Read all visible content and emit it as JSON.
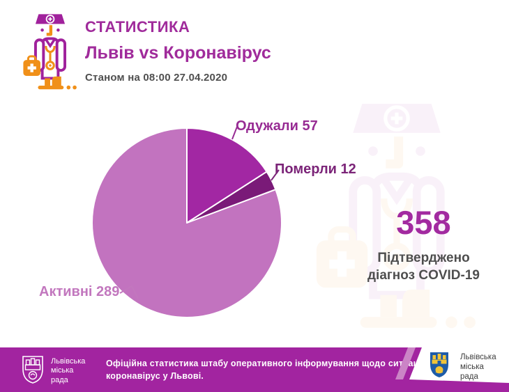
{
  "header": {
    "title": "СТАТИСТИКА",
    "subtitle": "Львів vs Коронавірус",
    "timestamp": "Станом на 08:00 27.04.2020"
  },
  "chart_data": {
    "type": "pie",
    "title": "Львів vs Коронавірус",
    "as_of": "Станом на 08:00 27.04.2020",
    "total": 358,
    "start_angle_deg": 0,
    "direction": "clockwise",
    "slices": [
      {
        "label": "Одужали",
        "value": 57,
        "color": "#A227A3",
        "label_color": "#972B93"
      },
      {
        "label": "Померли",
        "value": 12,
        "color": "#7A1A78",
        "label_color": "#7B2478"
      },
      {
        "label": "Активні",
        "value": 289,
        "color": "#C273BF",
        "label_color": "#C277BE"
      }
    ]
  },
  "summary": {
    "value": "358",
    "caption_line1": "Підтверджено",
    "caption_line2": "діагноз COVID-19"
  },
  "footer": {
    "text_line1": "Офіційна статистика штабу оперативного інформування щодо ситуації із захворюван",
    "text_line2": "коронавірус у Львові.",
    "left_logo": {
      "line1": "Львівська",
      "line2": "міська",
      "line3": "рада"
    },
    "right_logo": {
      "line1": "Львівська",
      "line2": "міська",
      "line3": "рада"
    }
  },
  "colors": {
    "accent_magenta": "#A02B9B",
    "footer_bg": "#A224A0",
    "text_dark": "#4E4E4E",
    "icon_orange": "#F09019",
    "icon_magenta": "#A0219C"
  }
}
